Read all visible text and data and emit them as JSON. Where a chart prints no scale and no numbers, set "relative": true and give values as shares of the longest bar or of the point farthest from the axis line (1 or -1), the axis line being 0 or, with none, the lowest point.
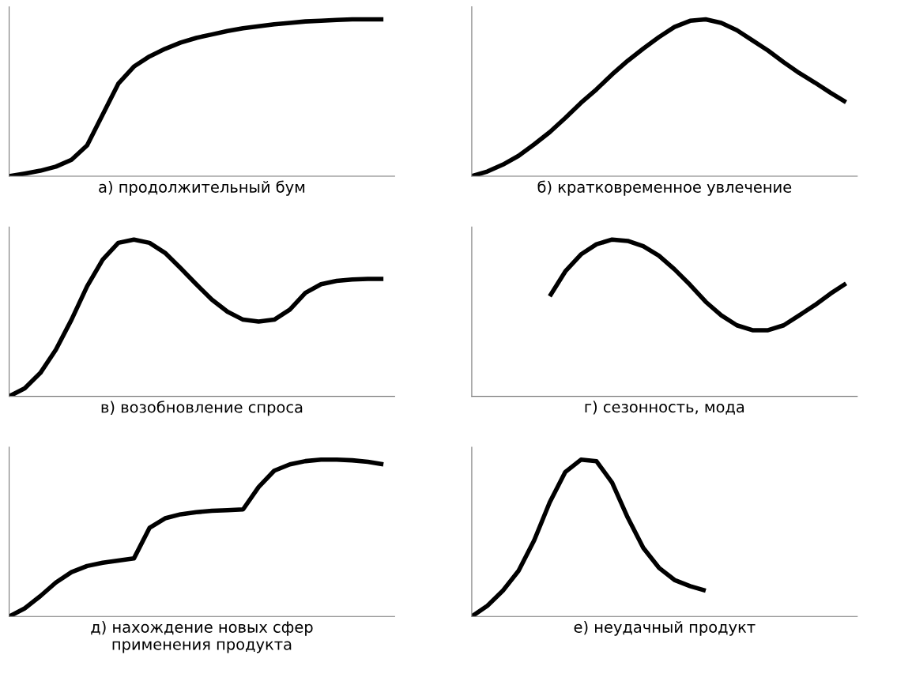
{
  "chart_data": [
    {
      "type": "line",
      "relative": true,
      "tick_labels": false,
      "xlabel": "а) продолжительный бум",
      "categories": [
        null,
        null,
        null,
        null,
        null,
        null,
        null,
        null,
        null,
        null,
        null,
        null,
        null,
        null,
        null,
        null,
        null,
        null,
        null,
        null,
        null,
        null,
        null,
        null,
        null
      ],
      "series": [
        {
          "color": "#000000",
          "values": [
            0,
            0.017,
            0.035,
            0.061,
            0.105,
            0.197,
            0.393,
            0.59,
            0.699,
            0.764,
            0.812,
            0.852,
            0.882,
            0.904,
            0.926,
            0.943,
            0.956,
            0.969,
            0.978,
            0.987,
            0.991,
            0.996,
            1,
            1,
            1
          ]
        }
      ]
    },
    {
      "type": "line",
      "relative": true,
      "tick_labels": false,
      "xlabel": "б) кратковременное увлечение",
      "categories": [
        null,
        null,
        null,
        null,
        null,
        null,
        null,
        null,
        null,
        null,
        null,
        null,
        null,
        null,
        null,
        null,
        null,
        null,
        null,
        null,
        null,
        null,
        null,
        null,
        null
      ],
      "series": [
        {
          "color": "#000000",
          "values": [
            0,
            0.03,
            0.074,
            0.13,
            0.203,
            0.281,
            0.372,
            0.468,
            0.554,
            0.649,
            0.736,
            0.814,
            0.887,
            0.952,
            0.991,
            1,
            0.978,
            0.931,
            0.866,
            0.801,
            0.727,
            0.658,
            0.597,
            0.532,
            0.472
          ]
        }
      ]
    },
    {
      "type": "line",
      "relative": true,
      "tick_labels": false,
      "xlabel": "в) возобновление спроса",
      "categories": [
        null,
        null,
        null,
        null,
        null,
        null,
        null,
        null,
        null,
        null,
        null,
        null,
        null,
        null,
        null,
        null,
        null,
        null,
        null,
        null,
        null,
        null,
        null,
        null,
        null
      ],
      "series": [
        {
          "color": "#000000",
          "values": [
            0,
            0.051,
            0.149,
            0.298,
            0.489,
            0.702,
            0.872,
            0.979,
            1,
            0.979,
            0.915,
            0.817,
            0.715,
            0.617,
            0.54,
            0.489,
            0.477,
            0.489,
            0.553,
            0.66,
            0.715,
            0.736,
            0.745,
            0.749,
            0.749
          ]
        }
      ]
    },
    {
      "type": "line",
      "relative": true,
      "tick_labels": false,
      "xlabel": "г) сезонность, мода",
      "categories": [
        null,
        null,
        null,
        null,
        null,
        null,
        null,
        null,
        null,
        null,
        null,
        null,
        null,
        null,
        null,
        null,
        null,
        null,
        null,
        null,
        null,
        null,
        null,
        null,
        null
      ],
      "series": [
        {
          "color": "#000000",
          "values": [
            null,
            null,
            null,
            null,
            null,
            0.638,
            0.797,
            0.905,
            0.97,
            1,
            0.991,
            0.957,
            0.897,
            0.81,
            0.711,
            0.603,
            0.517,
            0.453,
            0.422,
            0.422,
            0.453,
            0.517,
            0.582,
            0.655,
            0.72
          ]
        }
      ]
    },
    {
      "type": "line",
      "relative": true,
      "tick_labels": false,
      "xlabel": "д) нахождение новых сфер\nприменения продукта",
      "categories": [
        null,
        null,
        null,
        null,
        null,
        null,
        null,
        null,
        null,
        null,
        null,
        null,
        null,
        null,
        null,
        null,
        null,
        null,
        null,
        null,
        null,
        null,
        null,
        null,
        null
      ],
      "series": [
        {
          "color": "#000000",
          "values": [
            0,
            0.052,
            0.13,
            0.217,
            0.283,
            0.322,
            0.343,
            0.357,
            0.37,
            0.565,
            0.626,
            0.652,
            0.665,
            0.674,
            0.678,
            0.683,
            0.826,
            0.93,
            0.97,
            0.991,
            1,
            1,
            0.996,
            0.987,
            0.97
          ]
        }
      ]
    },
    {
      "type": "line",
      "relative": true,
      "tick_labels": false,
      "xlabel": "е) неудачный продукт",
      "categories": [
        null,
        null,
        null,
        null,
        null,
        null,
        null,
        null,
        null,
        null,
        null,
        null,
        null,
        null,
        null,
        null,
        null,
        null,
        null,
        null,
        null,
        null,
        null,
        null,
        null
      ],
      "series": [
        {
          "color": "#000000",
          "values": [
            0,
            0.068,
            0.165,
            0.291,
            0.485,
            0.728,
            0.922,
            1,
            0.99,
            0.854,
            0.631,
            0.437,
            0.311,
            0.233,
            0.194,
            0.165,
            null,
            null,
            null,
            null,
            null,
            null,
            null,
            null,
            null
          ]
        }
      ]
    }
  ]
}
